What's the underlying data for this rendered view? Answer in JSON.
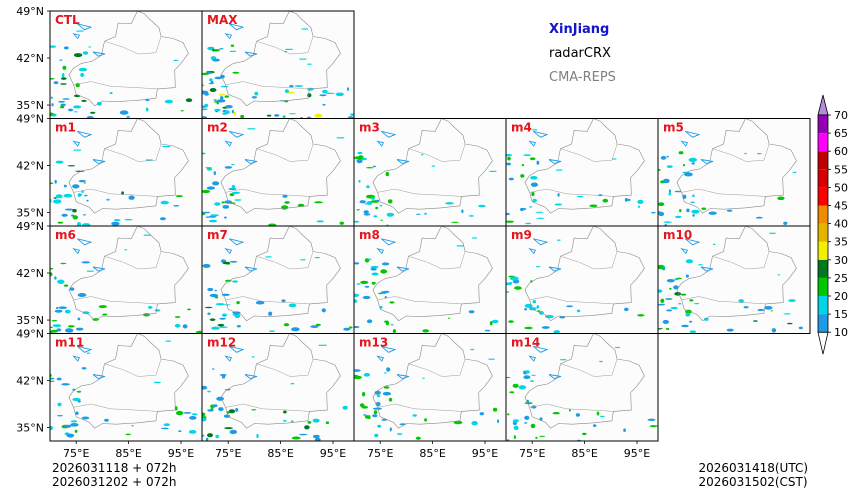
{
  "header": {
    "region": "XinJiang",
    "product": "radarCRX",
    "system": "CMA-REPS"
  },
  "panels": [
    {
      "label": "CTL",
      "intensity": 0.55
    },
    {
      "label": "MAX",
      "intensity": 1.0
    },
    {
      "label": "m1",
      "intensity": 0.55
    },
    {
      "label": "m2",
      "intensity": 0.5
    },
    {
      "label": "m3",
      "intensity": 0.5
    },
    {
      "label": "m4",
      "intensity": 0.45
    },
    {
      "label": "m5",
      "intensity": 0.5
    },
    {
      "label": "m6",
      "intensity": 0.5
    },
    {
      "label": "m7",
      "intensity": 0.55
    },
    {
      "label": "m8",
      "intensity": 0.45
    },
    {
      "label": "m9",
      "intensity": 0.35
    },
    {
      "label": "m10",
      "intensity": 0.6
    },
    {
      "label": "m11",
      "intensity": 0.5
    },
    {
      "label": "m12",
      "intensity": 0.55
    },
    {
      "label": "m13",
      "intensity": 0.5
    },
    {
      "label": "m14",
      "intensity": 0.5
    }
  ],
  "axes": {
    "lat_ticks": [
      "49°N",
      "42°N",
      "35°N"
    ],
    "lon_ticks": [
      "75°E",
      "85°E",
      "95°E"
    ]
  },
  "colorbar": {
    "levels": [
      "10",
      "15",
      "20",
      "25",
      "30",
      "35",
      "40",
      "45",
      "50",
      "55",
      "60",
      "65",
      "70"
    ],
    "colors": [
      "#1e9be6",
      "#00d7e6",
      "#00c800",
      "#00781e",
      "#f0f000",
      "#e6b400",
      "#f08c00",
      "#ff0000",
      "#d70000",
      "#c00000",
      "#ff00ff",
      "#9600b4",
      "#b48cdc"
    ]
  },
  "footer": {
    "init_line1": "2026031118  +  072h",
    "init_line2": "2026031202  +  072h",
    "valid_utc": "2026031418(UTC)",
    "valid_cst": "2026031502(CST)"
  }
}
